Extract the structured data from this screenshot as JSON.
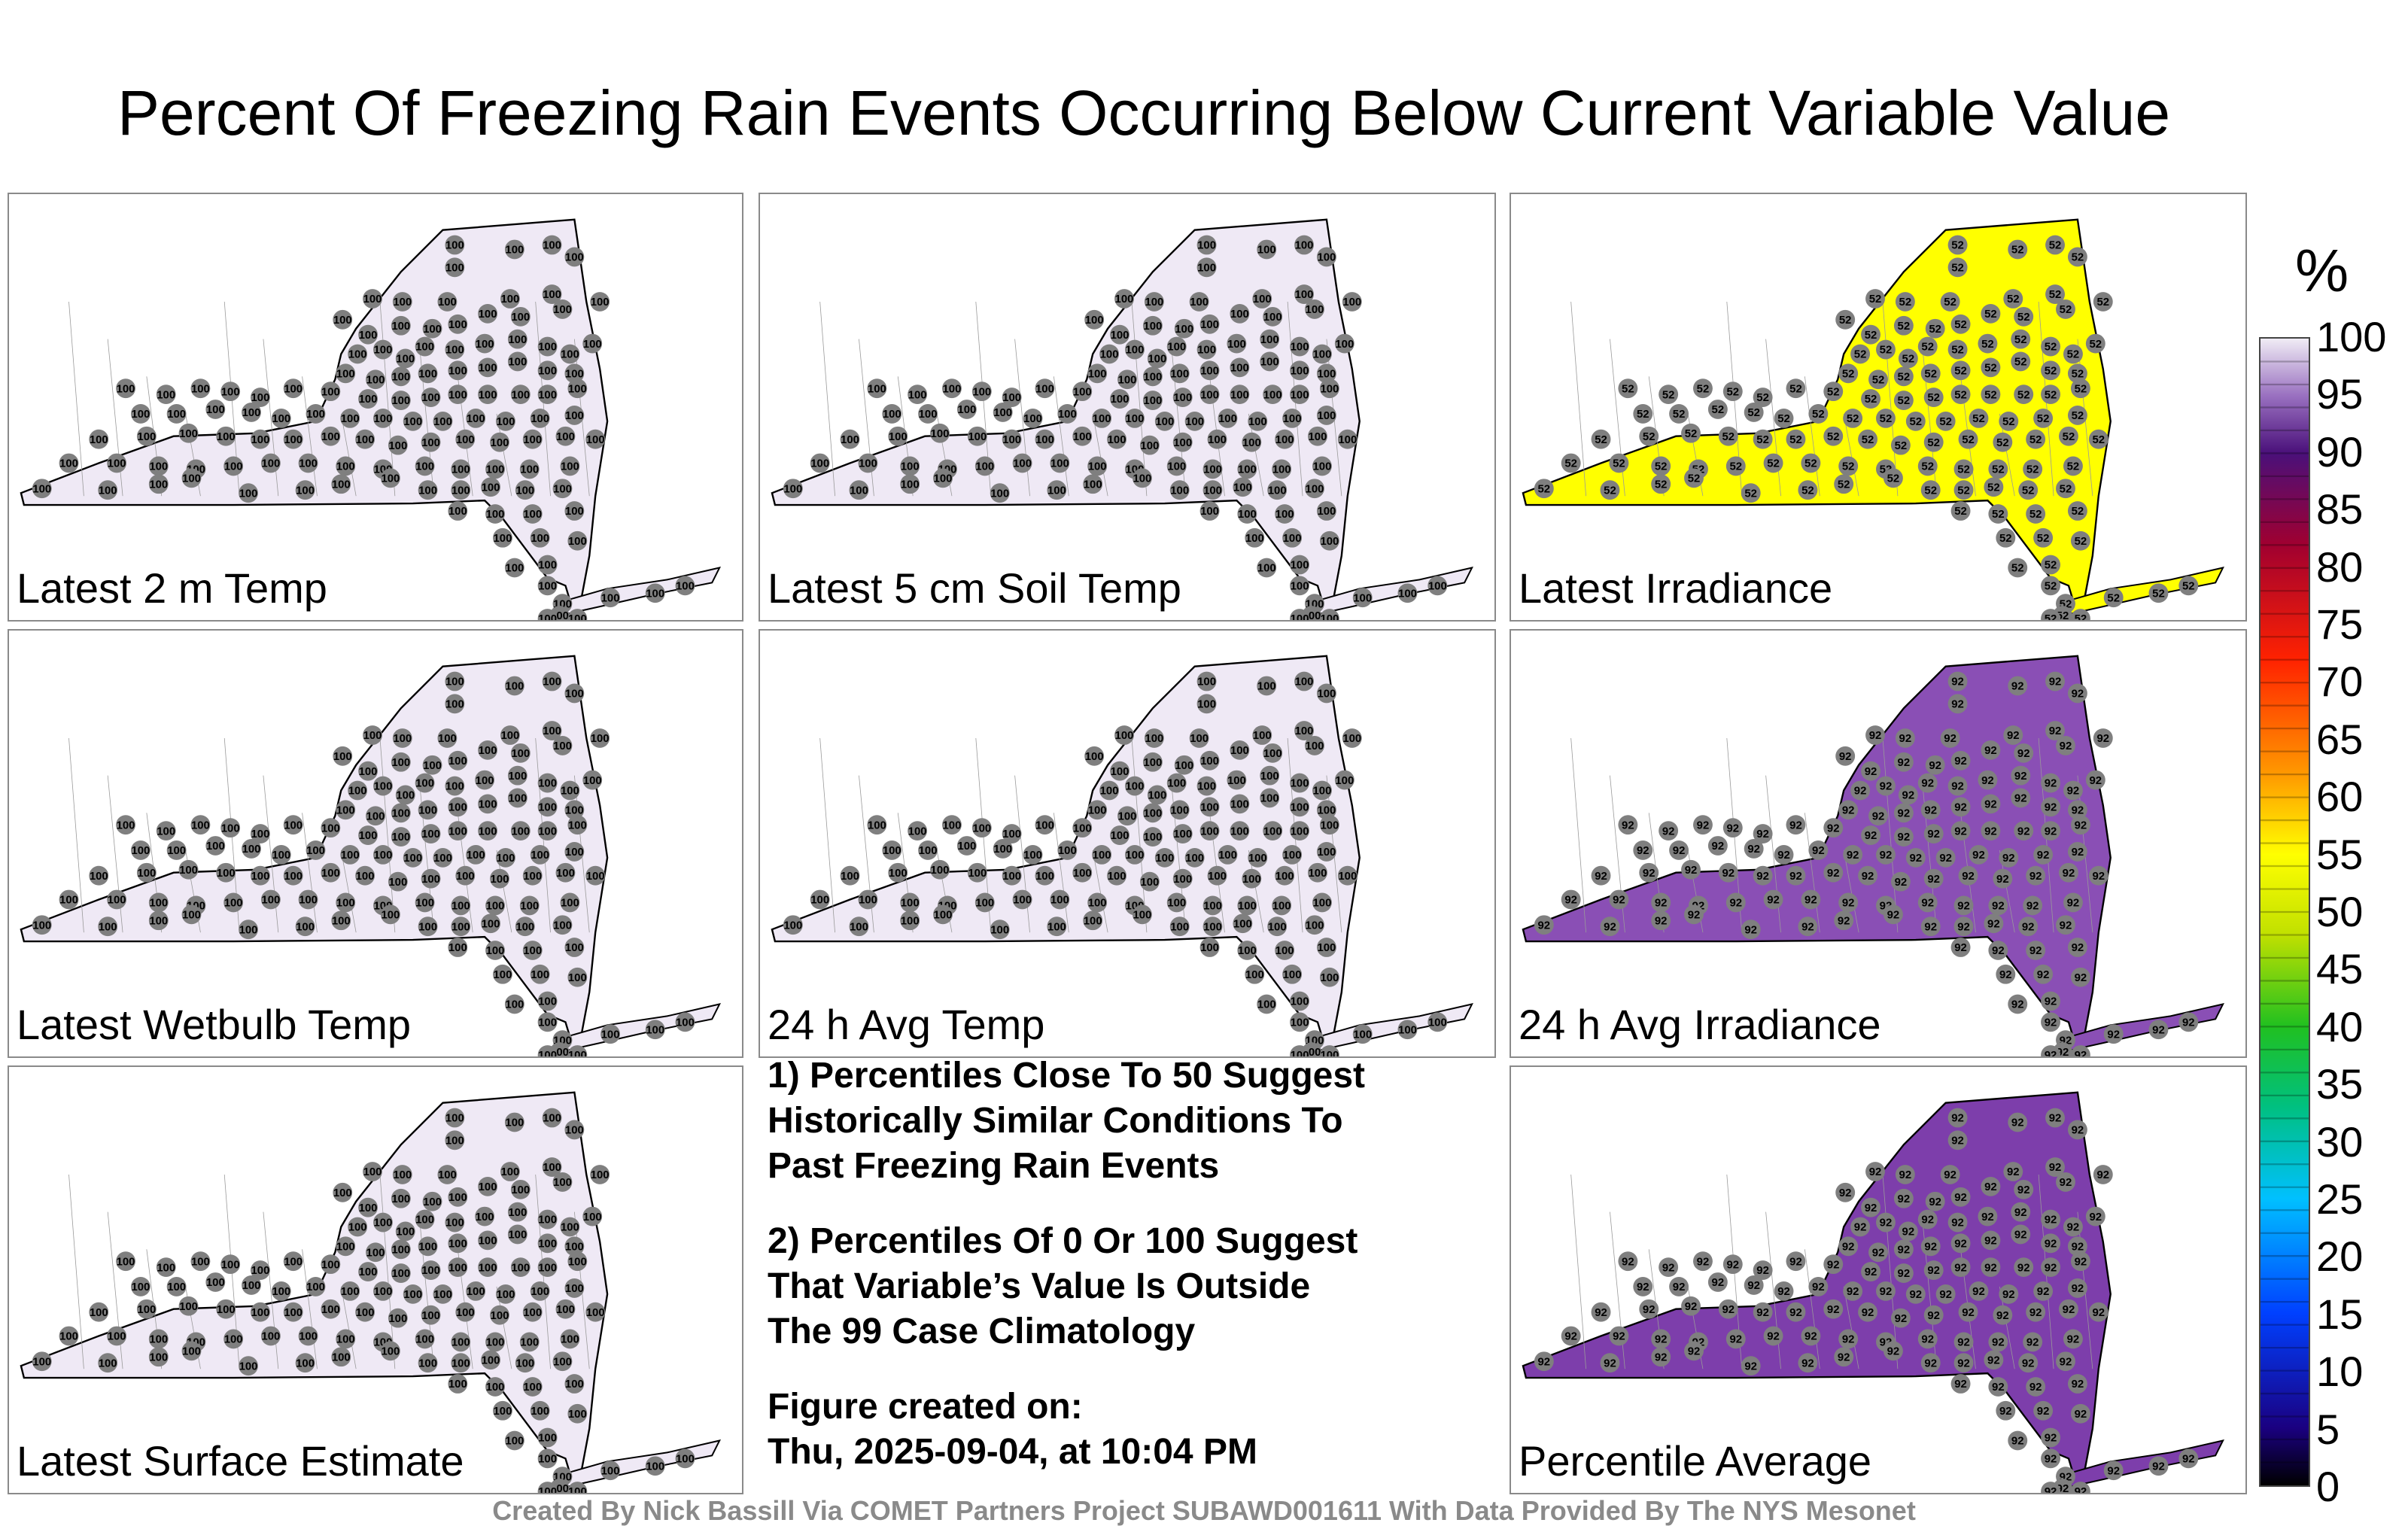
{
  "title": "Percent Of Freezing Rain Events Occurring Below Current Variable Value",
  "panels": [
    {
      "label": "Latest 2 m Temp",
      "value": "100",
      "fill": "#efe9f5",
      "percentile": 100
    },
    {
      "label": "Latest 5 cm Soil Temp",
      "value": "100",
      "fill": "#efe9f5",
      "percentile": 100
    },
    {
      "label": "Latest Irradiance",
      "value": "52",
      "fill": "#ffff00",
      "percentile": 52
    },
    {
      "label": "Latest Wetbulb Temp",
      "value": "100",
      "fill": "#efe9f5",
      "percentile": 100
    },
    {
      "label": "24 h Avg Temp",
      "value": "100",
      "fill": "#efe9f5",
      "percentile": 100
    },
    {
      "label": "24 h Avg Irradiance",
      "value": "92",
      "fill": "#8a4fb5",
      "percentile": 92
    },
    {
      "label": "Latest Surface Estimate",
      "value": "100",
      "fill": "#efe9f5",
      "percentile": 100
    },
    {
      "label": "Percentile Average",
      "value": "92",
      "fill": "#7d3eab",
      "percentile": 92
    }
  ],
  "notes": {
    "line1": "1) Percentiles Close To 50 Suggest",
    "line2": "Historically Similar Conditions To",
    "line3": "Past Freezing Rain Events",
    "line4": "2) Percentiles Of 0 Or 100 Suggest",
    "line5": "That Variable’s Value Is Outside",
    "line6": "The 99 Case Climatology",
    "line7": "Figure created on:",
    "line8": "Thu, 2025-09-04, at 10:04 PM"
  },
  "colorbar": {
    "unit": "%",
    "ticks": [
      "100",
      "95",
      "90",
      "85",
      "80",
      "75",
      "70",
      "65",
      "60",
      "55",
      "50",
      "45",
      "40",
      "35",
      "30",
      "25",
      "20",
      "15",
      "10",
      "5",
      "0"
    ]
  },
  "credit": "Created By Nick Bassill Via COMET Partners Project SUBAWD001611 With Data Provided By The NYS Mesonet"
}
